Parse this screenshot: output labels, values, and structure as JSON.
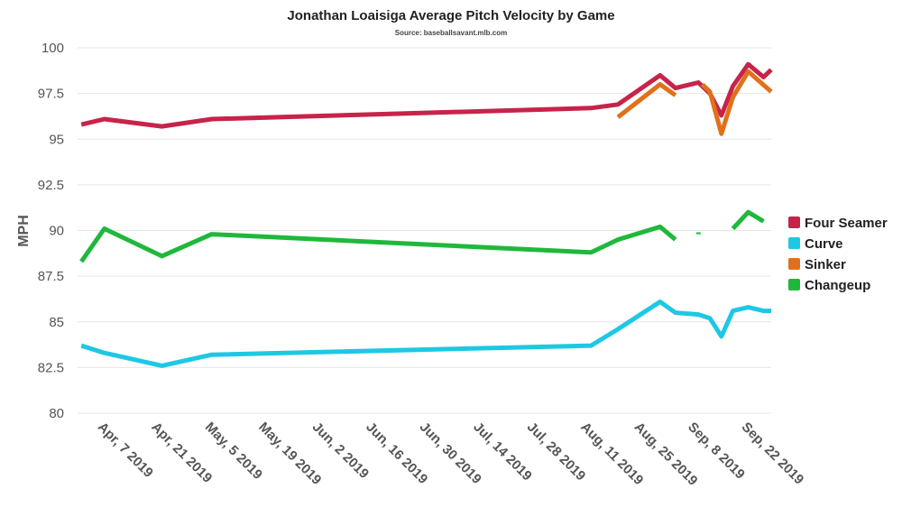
{
  "chart_data": {
    "type": "line",
    "title": "Jonathan Loaisiga Average Pitch Velocity by Game",
    "subtitle": "Source: baseballsavant.mlb.com",
    "xlabel": "",
    "ylabel": "MPH",
    "ylim": [
      80,
      100
    ],
    "yticks": [
      80,
      82.5,
      85,
      87.5,
      90,
      92.5,
      95,
      97.5,
      100
    ],
    "xlim": [
      "2019-03-31",
      "2019-09-28"
    ],
    "xticks": [
      {
        "date": "2019-04-07",
        "label": "Apr, 7 2019"
      },
      {
        "date": "2019-04-21",
        "label": "Apr, 21 2019"
      },
      {
        "date": "2019-05-05",
        "label": "May, 5 2019"
      },
      {
        "date": "2019-05-19",
        "label": "May, 19 2019"
      },
      {
        "date": "2019-06-02",
        "label": "Jun, 2 2019"
      },
      {
        "date": "2019-06-16",
        "label": "Jun, 16 2019"
      },
      {
        "date": "2019-06-30",
        "label": "Jun, 30 2019"
      },
      {
        "date": "2019-07-14",
        "label": "Jul, 14 2019"
      },
      {
        "date": "2019-07-28",
        "label": "Jul, 28 2019"
      },
      {
        "date": "2019-08-11",
        "label": "Aug, 11 2019"
      },
      {
        "date": "2019-08-25",
        "label": "Aug, 25 2019"
      },
      {
        "date": "2019-09-08",
        "label": "Sep, 8 2019"
      },
      {
        "date": "2019-09-22",
        "label": "Sep, 22 2019"
      }
    ],
    "grid": true,
    "legend_position": "right",
    "series": [
      {
        "name": "Four Seamer",
        "color": "#c8234a",
        "points": [
          [
            "2019-04-01",
            95.8
          ],
          [
            "2019-04-07",
            96.1
          ],
          [
            "2019-04-22",
            95.7
          ],
          [
            "2019-05-05",
            96.1
          ],
          [
            "2019-08-12",
            96.7
          ],
          [
            "2019-08-19",
            96.9
          ],
          [
            "2019-08-30",
            98.5
          ],
          [
            "2019-09-03",
            97.8
          ],
          [
            "2019-09-09",
            98.1
          ],
          [
            "2019-09-12",
            97.5
          ],
          [
            "2019-09-15",
            96.3
          ],
          [
            "2019-09-18",
            97.9
          ],
          [
            "2019-09-22",
            99.1
          ],
          [
            "2019-09-26",
            98.4
          ],
          [
            "2019-09-28",
            98.8
          ]
        ]
      },
      {
        "name": "Curve",
        "color": "#1ec8e4",
        "points": [
          [
            "2019-04-01",
            83.7
          ],
          [
            "2019-04-07",
            83.3
          ],
          [
            "2019-04-22",
            82.6
          ],
          [
            "2019-05-05",
            83.2
          ],
          [
            "2019-08-12",
            83.7
          ],
          [
            "2019-08-19",
            84.6
          ],
          [
            "2019-08-30",
            86.1
          ],
          [
            "2019-09-03",
            85.5
          ],
          [
            "2019-09-09",
            85.4
          ],
          [
            "2019-09-12",
            85.2
          ],
          [
            "2019-09-15",
            84.2
          ],
          [
            "2019-09-18",
            85.6
          ],
          [
            "2019-09-22",
            85.8
          ],
          [
            "2019-09-26",
            85.6
          ],
          [
            "2019-09-28",
            85.6
          ]
        ]
      },
      {
        "name": "Sinker",
        "color": "#e0711a",
        "points": [
          [
            "2019-08-19",
            96.2
          ],
          [
            "2019-08-30",
            98.0
          ],
          [
            "2019-09-03",
            97.4
          ],
          null,
          [
            "2019-09-10",
            98.0
          ],
          [
            "2019-09-12",
            97.6
          ],
          [
            "2019-09-15",
            95.3
          ],
          [
            "2019-09-18",
            97.3
          ],
          [
            "2019-09-22",
            98.7
          ],
          [
            "2019-09-28",
            97.6
          ]
        ]
      },
      {
        "name": "Changeup",
        "color": "#1fb83c",
        "points": [
          [
            "2019-04-01",
            88.3
          ],
          [
            "2019-04-07",
            90.1
          ],
          [
            "2019-04-22",
            88.6
          ],
          [
            "2019-05-05",
            89.8
          ],
          [
            "2019-08-12",
            88.8
          ],
          [
            "2019-08-19",
            89.5
          ],
          [
            "2019-08-30",
            90.2
          ],
          [
            "2019-09-03",
            89.5
          ],
          null,
          [
            "2019-09-09",
            89.9
          ],
          [
            "2019-09-09",
            89.8
          ],
          null,
          [
            "2019-09-18",
            90.1
          ],
          [
            "2019-09-22",
            91.0
          ],
          [
            "2019-09-26",
            90.5
          ]
        ]
      }
    ]
  }
}
